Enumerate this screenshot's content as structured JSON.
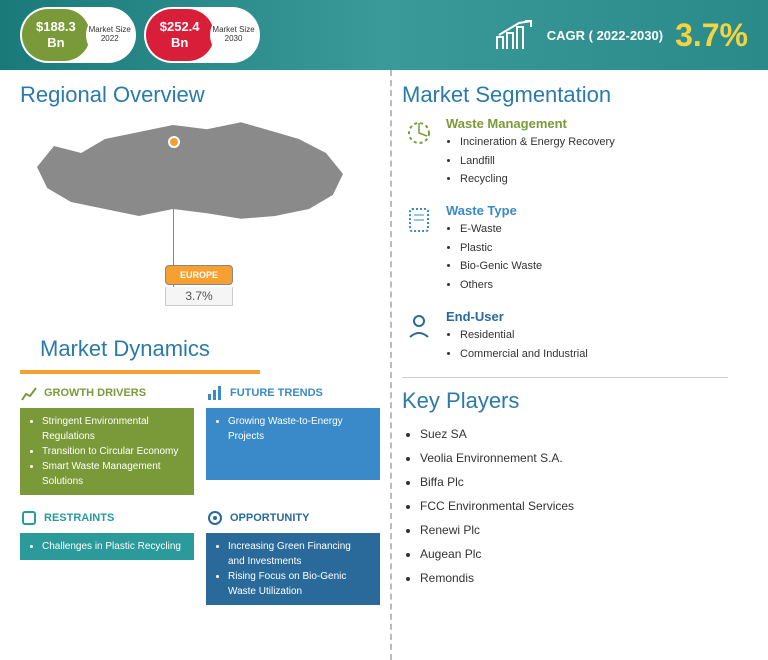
{
  "header": {
    "size2022": {
      "value": "$188.3",
      "unit": "Bn",
      "label": "Market Size 2022",
      "color": "#7a9a3a"
    },
    "size2030": {
      "value": "$252.4",
      "unit": "Bn",
      "label": "Market Size 2030",
      "color": "#d91e3a"
    },
    "cagr_label": "CAGR ( 2022-2030)",
    "cagr_value": "3.7%",
    "cagr_color": "#f5d442",
    "bg_gradient": [
      "#1a7a7a",
      "#3a9a9a",
      "#2a8a8a"
    ]
  },
  "regional": {
    "title": "Regional Overview",
    "map_color": "#8a8a8a",
    "pin_color": "#f5a030",
    "region_name": "EUROPE",
    "region_value": "3.7%",
    "region_bg": "#f5a030"
  },
  "dynamics": {
    "title": "Market Dynamics",
    "growth": {
      "title": "GROWTH DRIVERS",
      "color": "#7a9a3a",
      "items": [
        "Stringent Environmental Regulations",
        "Transition to Circular Economy",
        "Smart Waste Management Solutions"
      ]
    },
    "trends": {
      "title": "FUTURE TRENDS",
      "color": "#3a8aca",
      "items": [
        "Growing Waste-to-Energy Projects"
      ]
    },
    "restraints": {
      "title": "RESTRAINTS",
      "color": "#2a9a9a",
      "items": [
        "Challenges in Plastic Recycling"
      ]
    },
    "opportunity": {
      "title": "OPPORTUNITY",
      "color": "#2a6a9a",
      "items": [
        "Increasing Green Financing and Investments",
        "Rising Focus on Bio-Genic Waste Utilization"
      ]
    }
  },
  "segmentation": {
    "title": "Market Segmentation",
    "groups": [
      {
        "title": "Waste Management",
        "color": "#7a9a3a",
        "icon": "pie",
        "items": [
          "Incineration & Energy Recovery",
          "Landfill",
          "Recycling"
        ]
      },
      {
        "title": "Waste Type",
        "color": "#3a8aca",
        "icon": "doc",
        "items": [
          "E-Waste",
          "Plastic",
          "Bio-Genic Waste",
          "Others"
        ]
      },
      {
        "title": "End-User",
        "color": "#2a6a9a",
        "icon": "user",
        "items": [
          "Residential",
          "Commercial and Industrial"
        ]
      }
    ]
  },
  "keyplayers": {
    "title": "Key Players",
    "items": [
      "Suez SA",
      "Veolia Environnement S.A.",
      "Biffa Plc",
      "FCC Environmental Services",
      "Renewi Plc",
      "Augean Plc",
      "Remondis"
    ]
  },
  "title_color": "#2a7aaa",
  "accent_orange": "#f5a030"
}
